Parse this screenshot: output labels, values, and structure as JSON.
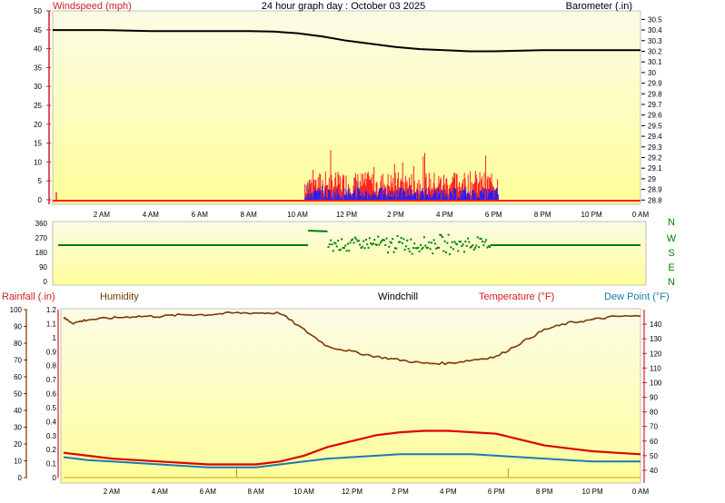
{
  "title": "24 hour graph day : October 03 2025",
  "colors": {
    "background": "#ffffff",
    "plot_bg_top": "#fbfbe6",
    "plot_bg_bottom": "#ffff9a",
    "windspeed": "#ff2020",
    "windgust": "#1f1fff",
    "barometer": "#000000",
    "wind_dir": "#008000",
    "humidity": "#7a3a00",
    "temperature": "#e00000",
    "dewpoint": "#1a7ab0",
    "rain": "#d4a017",
    "windchill": "#000000"
  },
  "chart_data": [
    {
      "type": "line",
      "panel": "wind-barometer",
      "title": "24 hour graph day : October 03 2025",
      "left_axis_label": "Windspeed (mph)",
      "right_axis_label": "Barometer (.in)",
      "left_ylim": [
        0,
        50
      ],
      "left_ticks": [
        "0",
        "5",
        "10",
        "15",
        "20",
        "25",
        "30",
        "35",
        "40",
        "45",
        "50"
      ],
      "right_ylim": [
        28.76,
        30.58
      ],
      "right_ticks": [
        "28.8",
        "28.9",
        "29",
        "29.1",
        "29.2",
        "29.3",
        "29.4",
        "29.5",
        "29.6",
        "29.7",
        "29.8",
        "29.9",
        "30",
        "30.1",
        "30.2",
        "30.3",
        "30.4",
        "30.5"
      ],
      "x_ticks": [
        "2 AM",
        "4 AM",
        "6 AM",
        "8 AM",
        "10 AM",
        "12 PM",
        "2 PM",
        "4 PM",
        "6 PM",
        "8 PM",
        "10 PM",
        "0 AM"
      ],
      "barometer": {
        "x": [
          0,
          2,
          4,
          6,
          8,
          9,
          10,
          11,
          12,
          13,
          14,
          15,
          16,
          17,
          18,
          20,
          22,
          24
        ],
        "y": [
          30.4,
          30.4,
          30.39,
          30.39,
          30.39,
          30.385,
          30.37,
          30.34,
          30.3,
          30.27,
          30.24,
          30.22,
          30.21,
          30.2,
          30.2,
          30.21,
          30.21,
          30.21
        ]
      },
      "windspeed": {
        "x_range": [
          10.3,
          18.2
        ],
        "peak": 12,
        "typical": 5
      },
      "windgust": {
        "x_range": [
          10.3,
          18.2
        ],
        "peak": 6,
        "typical": 2
      }
    },
    {
      "type": "scatter",
      "panel": "wind-direction",
      "ylim": [
        0,
        360
      ],
      "left_ticks": [
        "0",
        "90",
        "180",
        "270",
        "360"
      ],
      "compass_labels": [
        "N",
        "W",
        "S",
        "E",
        "N"
      ],
      "calm_direction": 225,
      "active_x_range": [
        10.3,
        17.8
      ],
      "active_direction_range": [
        150,
        330
      ]
    },
    {
      "type": "line",
      "panel": "temp-humidity-rain",
      "labels": [
        "Rainfall (.in)",
        "Humidity",
        "Windchill",
        "Temperature (°F)",
        "Dew Point (°F)"
      ],
      "humidity_ylim": [
        0,
        100
      ],
      "humidity_ticks": [
        "0",
        "10",
        "20",
        "30",
        "40",
        "50",
        "60",
        "70",
        "80",
        "90",
        "100"
      ],
      "rain_ylim": [
        0,
        1.2
      ],
      "rain_ticks": [
        "0",
        "0.1",
        "0.2",
        "0.3",
        "0.4",
        "0.5",
        "0.6",
        "0.7",
        "0.8",
        "0.9",
        "1",
        "1.1",
        "1.2"
      ],
      "temp_ylim": [
        35,
        150
      ],
      "temp_ticks": [
        "40",
        "50",
        "60",
        "70",
        "80",
        "90",
        "100",
        "110",
        "120",
        "130",
        "140"
      ],
      "x_ticks": [
        "2 AM",
        "4 AM",
        "6 AM",
        "8 AM",
        "10 AM",
        "12 PM",
        "2 PM",
        "4 PM",
        "6 PM",
        "8 PM",
        "10 PM",
        "0 AM"
      ],
      "humidity": {
        "x": [
          0,
          0.4,
          1,
          2,
          3,
          4,
          5,
          6,
          7,
          8,
          9,
          10,
          11,
          12,
          13,
          14,
          15,
          16,
          17,
          18,
          19,
          20,
          21,
          22,
          23,
          24
        ],
        "y": [
          95,
          92,
          94,
          95,
          96,
          96,
          97,
          97,
          98,
          98,
          98,
          88,
          78,
          75,
          72,
          70,
          68,
          68,
          70,
          72,
          80,
          88,
          92,
          94,
          96,
          96
        ]
      },
      "temperature": {
        "x": [
          0,
          1,
          2,
          3,
          4,
          5,
          6,
          7,
          8,
          9,
          10,
          11,
          12,
          13,
          14,
          15,
          16,
          17,
          18,
          19,
          20,
          21,
          22,
          23,
          24
        ],
        "y": [
          52,
          50,
          48,
          47,
          46,
          45,
          44,
          44,
          44,
          46,
          50,
          56,
          60,
          64,
          66,
          67,
          67,
          66,
          65,
          61,
          57,
          55,
          53,
          52,
          51
        ]
      },
      "dewpoint": {
        "x": [
          0,
          1,
          2,
          3,
          4,
          5,
          6,
          7,
          8,
          9,
          10,
          11,
          12,
          13,
          14,
          15,
          16,
          17,
          18,
          19,
          20,
          21,
          22,
          23,
          24
        ],
        "y": [
          49,
          47,
          46,
          45,
          44,
          43,
          42,
          42,
          42,
          44,
          46,
          48,
          49,
          50,
          51,
          51,
          51,
          51,
          50,
          49,
          48,
          47,
          46,
          46,
          46
        ]
      },
      "rain_markers_x": [
        7.2,
        18.5
      ]
    }
  ]
}
